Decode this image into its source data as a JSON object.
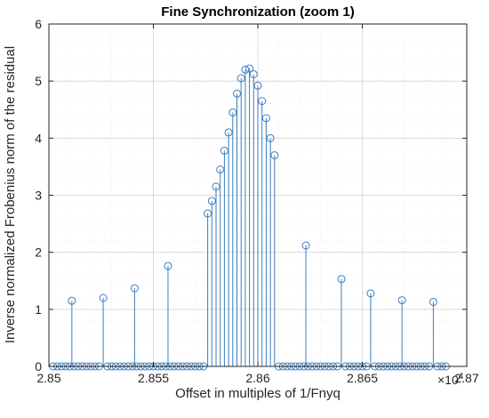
{
  "chart_data": {
    "type": "stem",
    "title": "Fine Synchronization (zoom 1)",
    "xlabel": "Offset in multiples of 1/Fnyq",
    "ylabel": "Inverse normalized Frobenius norm of the residual",
    "x_scale_label": "×10",
    "x_scale_exponent": "4",
    "xlim": [
      28500,
      28700
    ],
    "ylim": [
      0,
      6
    ],
    "x_ticks": [
      28500,
      28550,
      28600,
      28650,
      28700
    ],
    "x_tick_labels": [
      "2.85",
      "2.855",
      "2.86",
      "2.865",
      "2.87"
    ],
    "y_ticks": [
      0,
      1,
      2,
      3,
      4,
      5,
      6
    ],
    "y_tick_labels": [
      "0",
      "1",
      "2",
      "3",
      "4",
      "5",
      "6"
    ],
    "grid": true,
    "color": "#3a7ebf",
    "sample_spacing": 2,
    "zero_region_start": 28502,
    "zero_region_end": 28690,
    "peak_region": {
      "x": [
        28576,
        28578,
        28580,
        28582,
        28584,
        28586,
        28588,
        28590,
        28592,
        28594,
        28596,
        28598,
        28600,
        28602,
        28604,
        28606,
        28608
      ],
      "y": [
        2.68,
        2.9,
        3.15,
        3.45,
        3.78,
        4.1,
        4.45,
        4.78,
        5.05,
        5.2,
        5.22,
        5.12,
        4.92,
        4.65,
        4.35,
        4.0,
        3.7
      ]
    },
    "isolated_peaks": {
      "x": [
        28511,
        28526,
        28541,
        28557,
        28623,
        28640,
        28654,
        28669,
        28684
      ],
      "y": [
        1.15,
        1.2,
        1.37,
        1.76,
        2.12,
        1.53,
        1.28,
        1.16,
        1.13
      ]
    }
  }
}
